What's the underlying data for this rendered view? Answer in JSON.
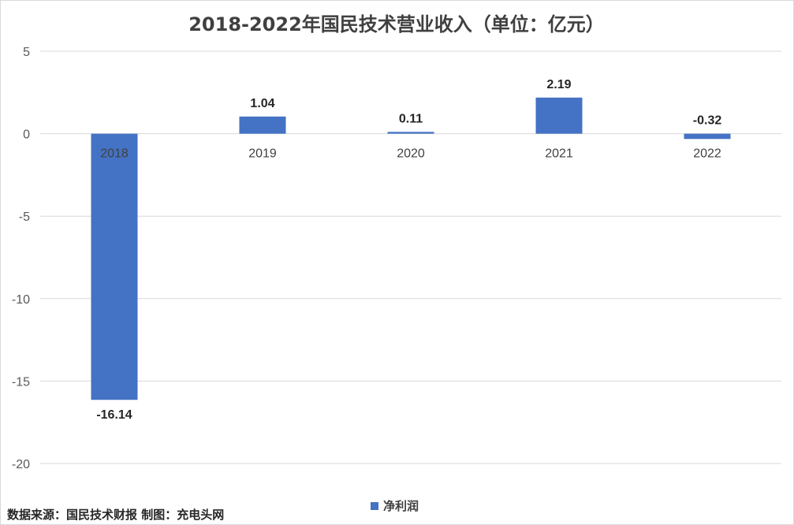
{
  "colors": {
    "bar": "#4472c4",
    "gridline": "#d9d9d9",
    "title": "#404040",
    "background": "#ffffff"
  },
  "source_note": "数据来源：国民技术财报  制图：充电头网",
  "chart_data": {
    "type": "bar",
    "title": "2018-2022年国民技术营业收入（单位：亿元）",
    "xlabel": "",
    "ylabel": "",
    "categories": [
      "2018",
      "2019",
      "2020",
      "2021",
      "2022"
    ],
    "series": [
      {
        "name": "净利润",
        "values": [
          -16.14,
          1.04,
          0.11,
          2.19,
          -0.32
        ]
      }
    ],
    "data_labels": [
      "-16.14",
      "1.04",
      "0.11",
      "2.19",
      "-0.32"
    ],
    "ylim": [
      -20,
      5
    ],
    "yticks": [
      5,
      0,
      -5,
      -10,
      -15,
      -20
    ],
    "ytick_labels": [
      "5",
      "0",
      "-5",
      "-10",
      "-15",
      "-20"
    ],
    "grid": true,
    "legend_position": "bottom"
  }
}
